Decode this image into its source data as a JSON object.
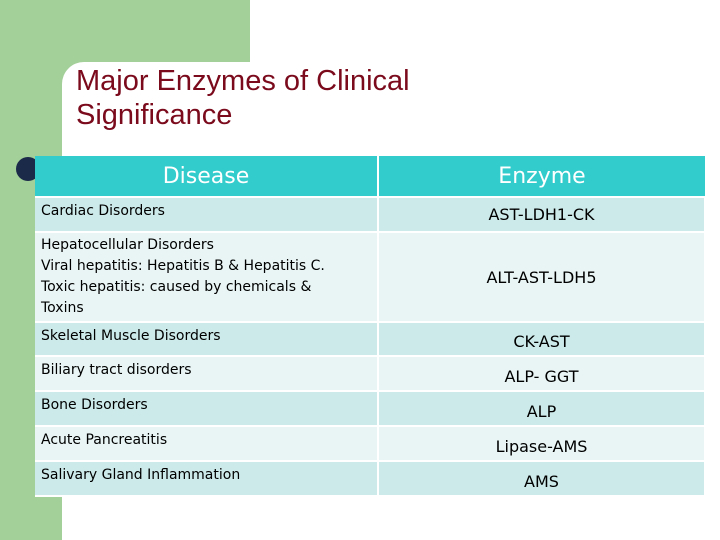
{
  "slide": {
    "title_line1": "Major Enzymes of Clinical",
    "title_line2": "Significance"
  },
  "table": {
    "headers": [
      "Disease",
      "Enzyme"
    ],
    "rows": [
      {
        "disease": [
          "Cardiac Disorders"
        ],
        "enzyme": "AST-LDH1-CK"
      },
      {
        "disease": [
          "Hepatocellular Disorders",
          "Viral hepatitis: Hepatitis B & Hepatitis C.",
          "Toxic hepatitis: caused by chemicals &",
          "Toxins"
        ],
        "enzyme": "ALT-AST-LDH5"
      },
      {
        "disease": [
          "Skeletal Muscle  Disorders"
        ],
        "enzyme": "CK-AST"
      },
      {
        "disease": [
          "Biliary tract disorders"
        ],
        "enzyme": "ALP- GGT"
      },
      {
        "disease": [
          "Bone Disorders"
        ],
        "enzyme": "ALP"
      },
      {
        "disease": [
          "Acute Pancreatitis"
        ],
        "enzyme": "Lipase-AMS"
      },
      {
        "disease": [
          "Salivary Gland Inflammation"
        ],
        "enzyme": "AMS"
      }
    ]
  },
  "colors": {
    "header_bg": "#33cccc",
    "row_odd": "#cdeaea",
    "row_even": "#e9f5f5",
    "title": "#7a0a1c",
    "accent_green": "#a3cf98"
  }
}
